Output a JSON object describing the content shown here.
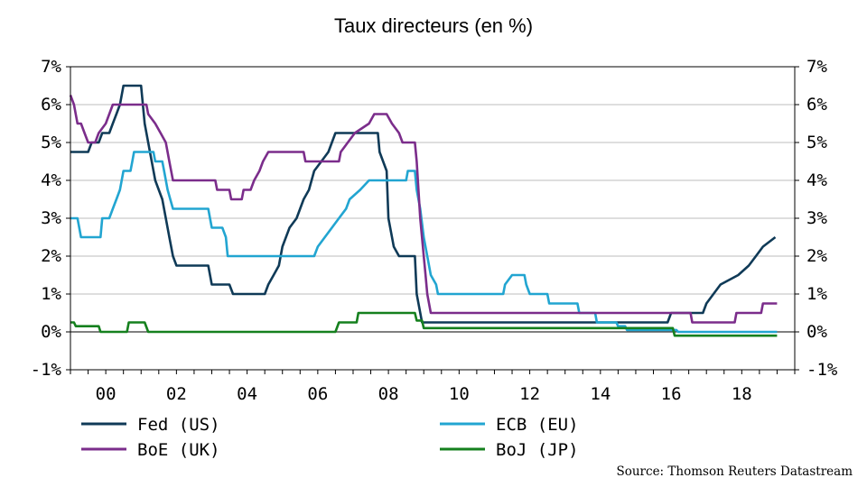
{
  "chart_data": {
    "type": "line",
    "title": "Taux directeurs (en %)",
    "source": "Source: Thomson Reuters Datastream",
    "y_ticks": [
      "7%",
      "6%",
      "5%",
      "4%",
      "3%",
      "2%",
      "1%",
      "0%",
      "-1%"
    ],
    "x_ticks": [
      "00",
      "02",
      "04",
      "06",
      "08",
      "10",
      "12",
      "14",
      "16",
      "18"
    ],
    "ylim": [
      -1,
      7
    ],
    "xlim": [
      1999.0,
      2019.5
    ],
    "grid": true,
    "legend_position": "bottom",
    "series": [
      {
        "name": "Fed (US)",
        "color": "#0f3a57",
        "points": [
          [
            1999.0,
            4.75
          ],
          [
            1999.5,
            4.75
          ],
          [
            1999.6,
            5.0
          ],
          [
            1999.8,
            5.0
          ],
          [
            1999.9,
            5.25
          ],
          [
            2000.1,
            5.25
          ],
          [
            2000.2,
            5.5
          ],
          [
            2000.3,
            5.75
          ],
          [
            2000.4,
            6.0
          ],
          [
            2000.5,
            6.5
          ],
          [
            2001.0,
            6.5
          ],
          [
            2001.05,
            6.0
          ],
          [
            2001.1,
            5.5
          ],
          [
            2001.2,
            5.0
          ],
          [
            2001.3,
            4.5
          ],
          [
            2001.4,
            4.0
          ],
          [
            2001.5,
            3.75
          ],
          [
            2001.6,
            3.5
          ],
          [
            2001.7,
            3.0
          ],
          [
            2001.8,
            2.5
          ],
          [
            2001.9,
            2.0
          ],
          [
            2002.0,
            1.75
          ],
          [
            2002.9,
            1.75
          ],
          [
            2003.0,
            1.25
          ],
          [
            2003.5,
            1.25
          ],
          [
            2003.6,
            1.0
          ],
          [
            2004.5,
            1.0
          ],
          [
            2004.6,
            1.25
          ],
          [
            2004.75,
            1.5
          ],
          [
            2004.9,
            1.75
          ],
          [
            2005.0,
            2.25
          ],
          [
            2005.2,
            2.75
          ],
          [
            2005.4,
            3.0
          ],
          [
            2005.5,
            3.25
          ],
          [
            2005.6,
            3.5
          ],
          [
            2005.75,
            3.75
          ],
          [
            2005.9,
            4.25
          ],
          [
            2006.1,
            4.5
          ],
          [
            2006.3,
            4.75
          ],
          [
            2006.5,
            5.25
          ],
          [
            2007.7,
            5.25
          ],
          [
            2007.75,
            4.75
          ],
          [
            2007.85,
            4.5
          ],
          [
            2007.95,
            4.25
          ],
          [
            2008.0,
            3.0
          ],
          [
            2008.15,
            2.25
          ],
          [
            2008.3,
            2.0
          ],
          [
            2008.75,
            2.0
          ],
          [
            2008.8,
            1.0
          ],
          [
            2008.95,
            0.25
          ],
          [
            2015.9,
            0.25
          ],
          [
            2016.0,
            0.5
          ],
          [
            2016.9,
            0.5
          ],
          [
            2017.0,
            0.75
          ],
          [
            2017.2,
            1.0
          ],
          [
            2017.4,
            1.25
          ],
          [
            2017.9,
            1.5
          ],
          [
            2018.2,
            1.75
          ],
          [
            2018.4,
            2.0
          ],
          [
            2018.6,
            2.25
          ],
          [
            2018.95,
            2.5
          ]
        ]
      },
      {
        "name": "ECB (EU)",
        "color": "#22a5d1",
        "points": [
          [
            1999.0,
            3.0
          ],
          [
            1999.2,
            3.0
          ],
          [
            1999.3,
            2.5
          ],
          [
            1999.85,
            2.5
          ],
          [
            1999.9,
            3.0
          ],
          [
            2000.1,
            3.0
          ],
          [
            2000.2,
            3.25
          ],
          [
            2000.3,
            3.5
          ],
          [
            2000.4,
            3.75
          ],
          [
            2000.5,
            4.25
          ],
          [
            2000.7,
            4.25
          ],
          [
            2000.75,
            4.5
          ],
          [
            2000.8,
            4.75
          ],
          [
            2001.35,
            4.75
          ],
          [
            2001.4,
            4.5
          ],
          [
            2001.6,
            4.5
          ],
          [
            2001.65,
            4.25
          ],
          [
            2001.75,
            3.75
          ],
          [
            2001.9,
            3.25
          ],
          [
            2002.9,
            3.25
          ],
          [
            2003.0,
            2.75
          ],
          [
            2003.3,
            2.75
          ],
          [
            2003.4,
            2.5
          ],
          [
            2003.45,
            2.0
          ],
          [
            2005.9,
            2.0
          ],
          [
            2006.0,
            2.25
          ],
          [
            2006.2,
            2.5
          ],
          [
            2006.4,
            2.75
          ],
          [
            2006.6,
            3.0
          ],
          [
            2006.8,
            3.25
          ],
          [
            2006.9,
            3.5
          ],
          [
            2007.2,
            3.75
          ],
          [
            2007.45,
            4.0
          ],
          [
            2008.5,
            4.0
          ],
          [
            2008.55,
            4.25
          ],
          [
            2008.75,
            4.25
          ],
          [
            2008.8,
            3.75
          ],
          [
            2008.9,
            3.25
          ],
          [
            2009.0,
            2.5
          ],
          [
            2009.1,
            2.0
          ],
          [
            2009.2,
            1.5
          ],
          [
            2009.35,
            1.25
          ],
          [
            2009.4,
            1.0
          ],
          [
            2011.25,
            1.0
          ],
          [
            2011.3,
            1.25
          ],
          [
            2011.5,
            1.5
          ],
          [
            2011.85,
            1.5
          ],
          [
            2011.9,
            1.25
          ],
          [
            2012.0,
            1.0
          ],
          [
            2012.5,
            1.0
          ],
          [
            2012.55,
            0.75
          ],
          [
            2013.35,
            0.75
          ],
          [
            2013.4,
            0.5
          ],
          [
            2013.85,
            0.5
          ],
          [
            2013.9,
            0.25
          ],
          [
            2014.45,
            0.25
          ],
          [
            2014.5,
            0.15
          ],
          [
            2014.7,
            0.15
          ],
          [
            2014.75,
            0.05
          ],
          [
            2016.15,
            0.05
          ],
          [
            2016.2,
            0.0
          ],
          [
            2019.0,
            0.0
          ]
        ]
      },
      {
        "name": "BoE (UK)",
        "color": "#7b2d8b",
        "points": [
          [
            1999.0,
            6.25
          ],
          [
            1999.1,
            6.0
          ],
          [
            1999.2,
            5.5
          ],
          [
            1999.3,
            5.5
          ],
          [
            1999.4,
            5.25
          ],
          [
            1999.5,
            5.0
          ],
          [
            1999.7,
            5.0
          ],
          [
            1999.8,
            5.25
          ],
          [
            2000.0,
            5.5
          ],
          [
            2000.1,
            5.75
          ],
          [
            2000.2,
            6.0
          ],
          [
            2001.15,
            6.0
          ],
          [
            2001.2,
            5.75
          ],
          [
            2001.4,
            5.5
          ],
          [
            2001.55,
            5.25
          ],
          [
            2001.7,
            5.0
          ],
          [
            2001.8,
            4.5
          ],
          [
            2001.9,
            4.0
          ],
          [
            2003.1,
            4.0
          ],
          [
            2003.15,
            3.75
          ],
          [
            2003.5,
            3.75
          ],
          [
            2003.55,
            3.5
          ],
          [
            2003.85,
            3.5
          ],
          [
            2003.9,
            3.75
          ],
          [
            2004.1,
            3.75
          ],
          [
            2004.2,
            4.0
          ],
          [
            2004.35,
            4.25
          ],
          [
            2004.45,
            4.5
          ],
          [
            2004.6,
            4.75
          ],
          [
            2005.6,
            4.75
          ],
          [
            2005.65,
            4.5
          ],
          [
            2006.6,
            4.5
          ],
          [
            2006.65,
            4.75
          ],
          [
            2006.85,
            5.0
          ],
          [
            2007.05,
            5.25
          ],
          [
            2007.45,
            5.5
          ],
          [
            2007.6,
            5.75
          ],
          [
            2007.95,
            5.75
          ],
          [
            2008.1,
            5.5
          ],
          [
            2008.3,
            5.25
          ],
          [
            2008.4,
            5.0
          ],
          [
            2008.75,
            5.0
          ],
          [
            2008.8,
            4.5
          ],
          [
            2008.9,
            3.0
          ],
          [
            2009.0,
            2.0
          ],
          [
            2009.05,
            1.5
          ],
          [
            2009.1,
            1.0
          ],
          [
            2009.2,
            0.5
          ],
          [
            2016.55,
            0.5
          ],
          [
            2016.6,
            0.25
          ],
          [
            2017.8,
            0.25
          ],
          [
            2017.85,
            0.5
          ],
          [
            2018.55,
            0.5
          ],
          [
            2018.6,
            0.75
          ],
          [
            2019.0,
            0.75
          ]
        ]
      },
      {
        "name": "BoJ (JP)",
        "color": "#15801e",
        "points": [
          [
            1999.0,
            0.25
          ],
          [
            1999.1,
            0.25
          ],
          [
            1999.15,
            0.15
          ],
          [
            1999.8,
            0.15
          ],
          [
            1999.85,
            0.0
          ],
          [
            2000.6,
            0.0
          ],
          [
            2000.65,
            0.25
          ],
          [
            2001.1,
            0.25
          ],
          [
            2001.2,
            0.0
          ],
          [
            2006.5,
            0.0
          ],
          [
            2006.6,
            0.25
          ],
          [
            2007.1,
            0.25
          ],
          [
            2007.15,
            0.5
          ],
          [
            2008.75,
            0.5
          ],
          [
            2008.8,
            0.3
          ],
          [
            2008.95,
            0.3
          ],
          [
            2009.0,
            0.1
          ],
          [
            2016.05,
            0.1
          ],
          [
            2016.1,
            -0.1
          ],
          [
            2019.0,
            -0.1
          ]
        ]
      }
    ]
  }
}
